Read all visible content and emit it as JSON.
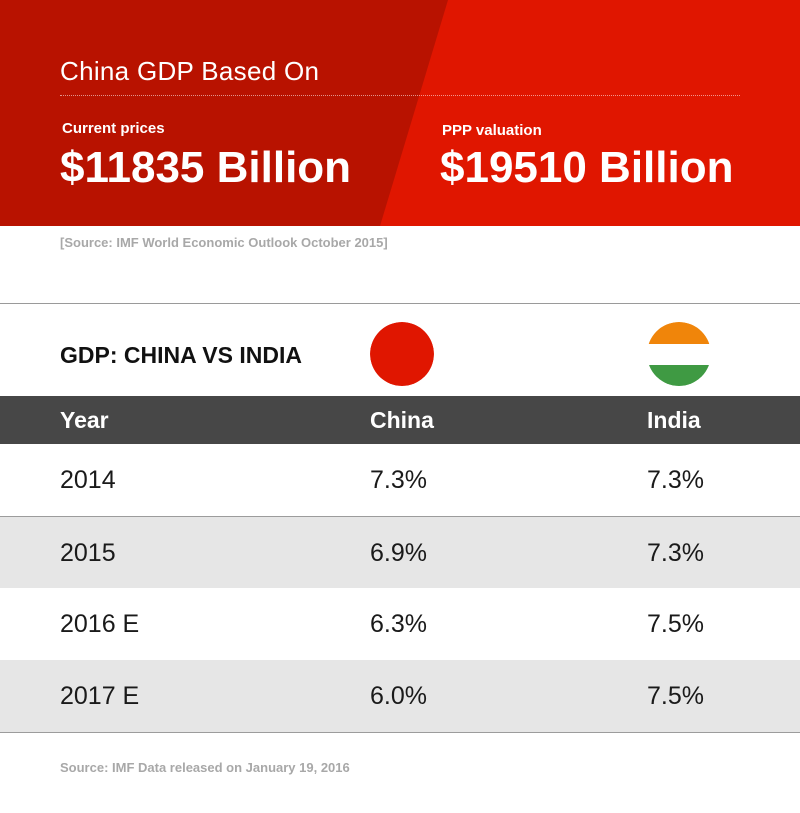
{
  "colors": {
    "banner_dark": "#b81200",
    "banner_bright": "#e01600",
    "table_header": "#474747",
    "china_red": "#e01600",
    "india_saffron": "#f0850a",
    "india_green": "#3f9a43"
  },
  "banner": {
    "title": "China GDP Based On",
    "current": {
      "label": "Current prices",
      "value": "$11835 Billion"
    },
    "ppp": {
      "label": "PPP valuation",
      "value": "$19510 Billion"
    }
  },
  "source_top": "[Source: IMF World Economic Outlook October 2015]",
  "section": {
    "title": "GDP: CHINA VS INDIA",
    "china_flag_icon": "china-flag-icon",
    "india_flag_icon": "india-flag-icon"
  },
  "table": {
    "headers": [
      "Year",
      "China",
      "India"
    ],
    "rows": [
      [
        "2014",
        "7.3%",
        "7.3%"
      ],
      [
        "2015",
        "6.9%",
        "7.3%"
      ],
      [
        "2016 E",
        "6.3%",
        "7.5%"
      ],
      [
        "2017 E",
        "6.0%",
        "7.5%"
      ]
    ]
  },
  "source_bottom": "Source: IMF Data released on January 19, 2016"
}
